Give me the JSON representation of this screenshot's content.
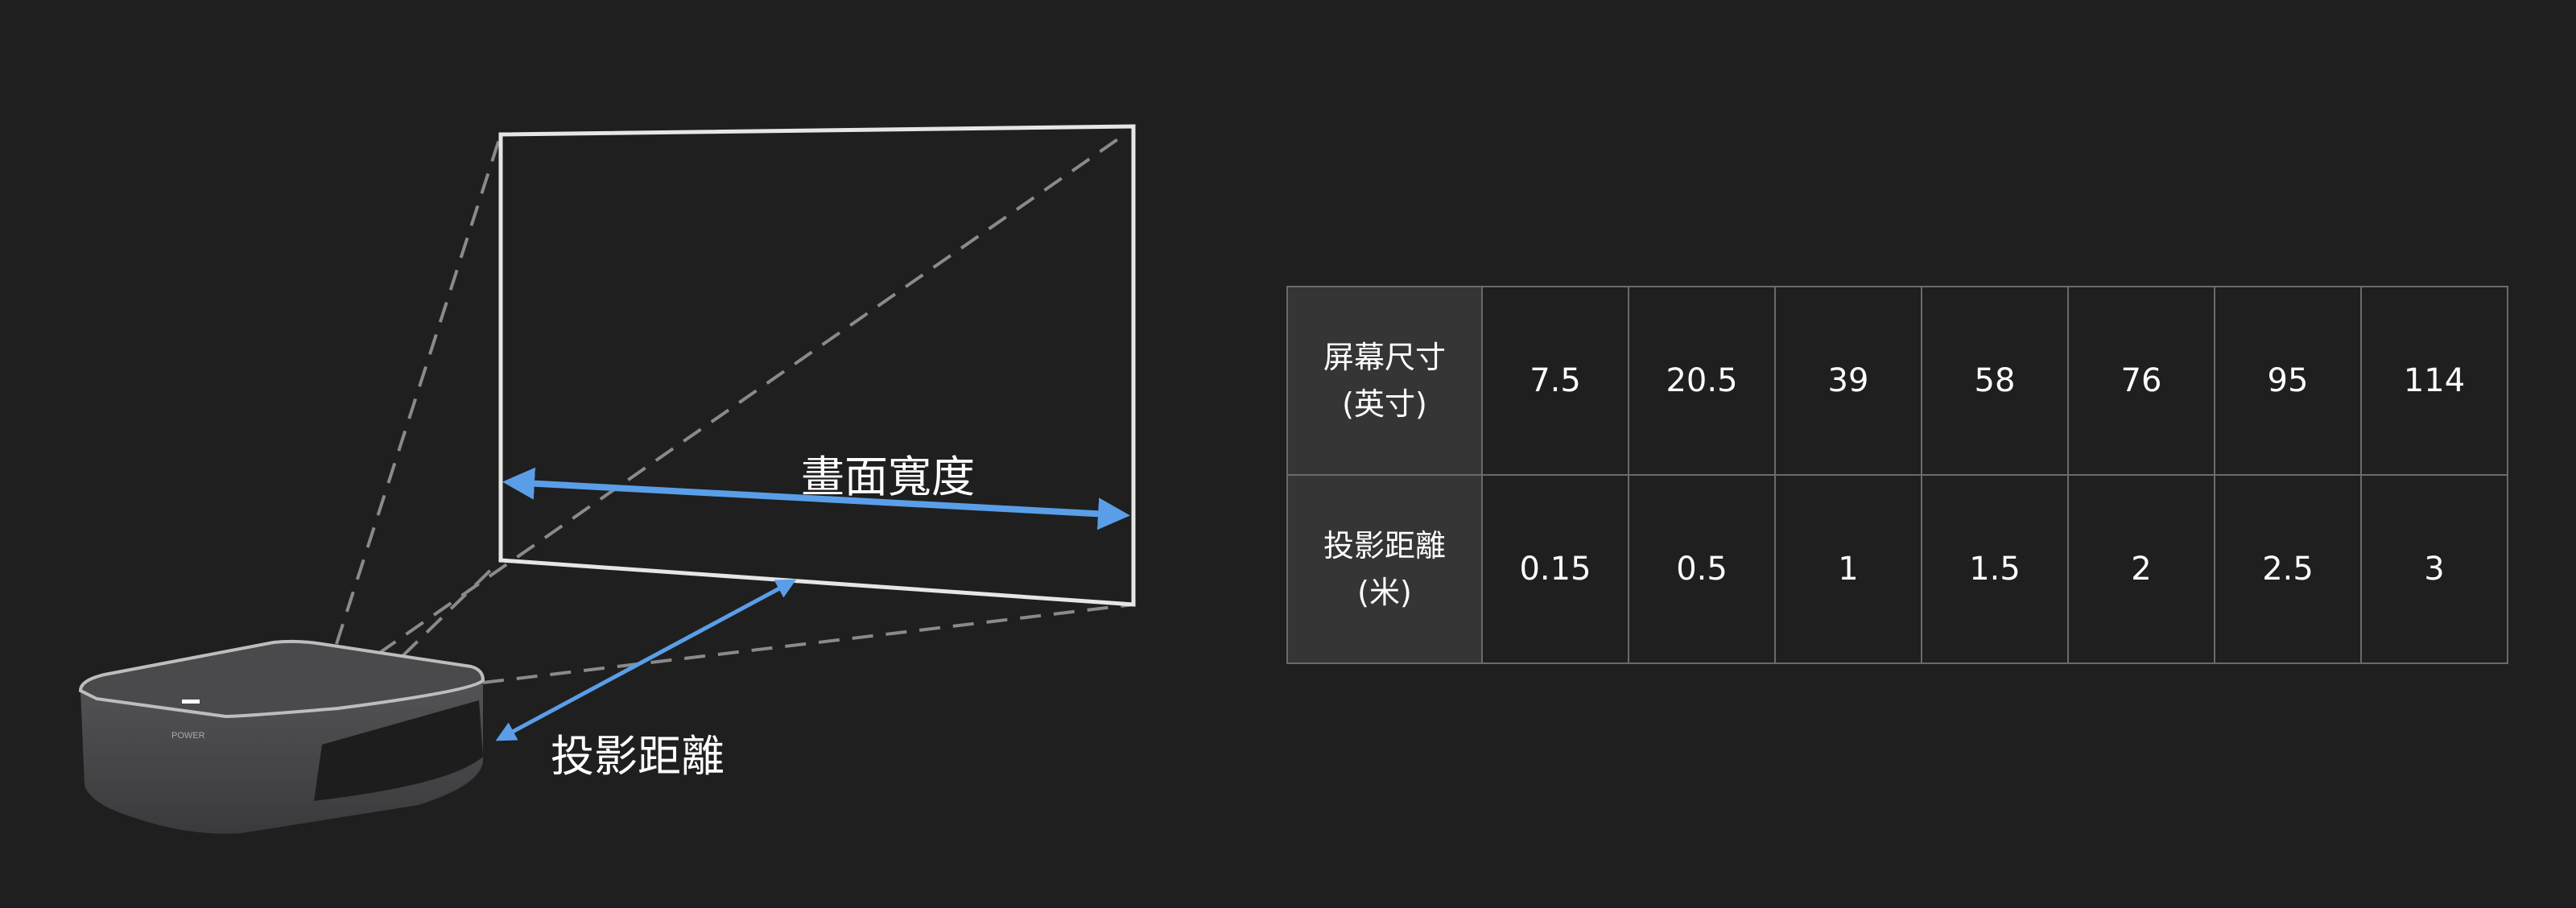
{
  "diagram": {
    "width_label": "畫面寬度",
    "distance_label": "投影距離",
    "projector_power_label": "POWER",
    "arrow_color": "#5a9ee8"
  },
  "table": {
    "rows": [
      {
        "header_line1": "屏幕尺寸",
        "header_line2": "(英寸)",
        "values": [
          "7.5",
          "20.5",
          "39",
          "58",
          "76",
          "95",
          "114"
        ]
      },
      {
        "header_line1": "投影距離",
        "header_line2": "(米)",
        "values": [
          "0.15",
          "0.5",
          "1",
          "1.5",
          "2",
          "2.5",
          "3"
        ]
      }
    ]
  }
}
